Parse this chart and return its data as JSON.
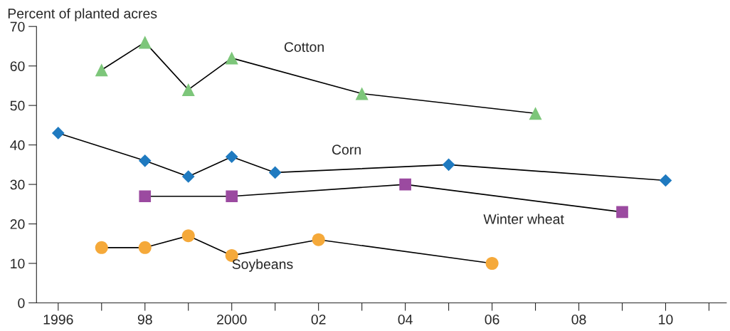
{
  "chart_data": {
    "type": "line",
    "ylabel": "Percent of planted acres",
    "xlim": [
      1995.5,
      2011.4
    ],
    "ylim": [
      0,
      70
    ],
    "yticks": [
      0,
      10,
      20,
      30,
      40,
      50,
      60,
      70
    ],
    "xticks": [
      {
        "value": 1996,
        "label": "1996"
      },
      {
        "value": 1997,
        "label": null
      },
      {
        "value": 1998,
        "label": "98"
      },
      {
        "value": 1999,
        "label": null
      },
      {
        "value": 2000,
        "label": "2000"
      },
      {
        "value": 2001,
        "label": null
      },
      {
        "value": 2002,
        "label": "02"
      },
      {
        "value": 2003,
        "label": null
      },
      {
        "value": 2004,
        "label": "04"
      },
      {
        "value": 2005,
        "label": null
      },
      {
        "value": 2006,
        "label": "06"
      },
      {
        "value": 2007,
        "label": null
      },
      {
        "value": 2008,
        "label": "08"
      },
      {
        "value": 2009,
        "label": null
      },
      {
        "value": 2010,
        "label": "10"
      },
      {
        "value": 2011,
        "label": null
      }
    ],
    "grid": false,
    "legend": false,
    "line_style": "solid",
    "series": [
      {
        "name": "Cotton",
        "color": "#7dc67a",
        "marker": "triangle",
        "x": [
          1997,
          1998,
          1999,
          2000,
          2003,
          2007
        ],
        "values": [
          59,
          66,
          54,
          62,
          53,
          48
        ]
      },
      {
        "name": "Corn",
        "color": "#1f7ac0",
        "marker": "diamond",
        "x": [
          1996,
          1998,
          1999,
          2000,
          2001,
          2005,
          2010
        ],
        "values": [
          43,
          36,
          32,
          37,
          33,
          35,
          31
        ]
      },
      {
        "name": "Winter wheat",
        "color": "#9b4aa0",
        "marker": "square",
        "x": [
          1998,
          2000,
          2004,
          2009
        ],
        "values": [
          27,
          27,
          30,
          23
        ]
      },
      {
        "name": "Soybeans",
        "color": "#f5a93a",
        "marker": "circle",
        "x": [
          1997,
          1998,
          1999,
          2000,
          2002,
          2006
        ],
        "values": [
          14,
          14,
          17,
          12,
          16,
          10
        ]
      }
    ]
  }
}
